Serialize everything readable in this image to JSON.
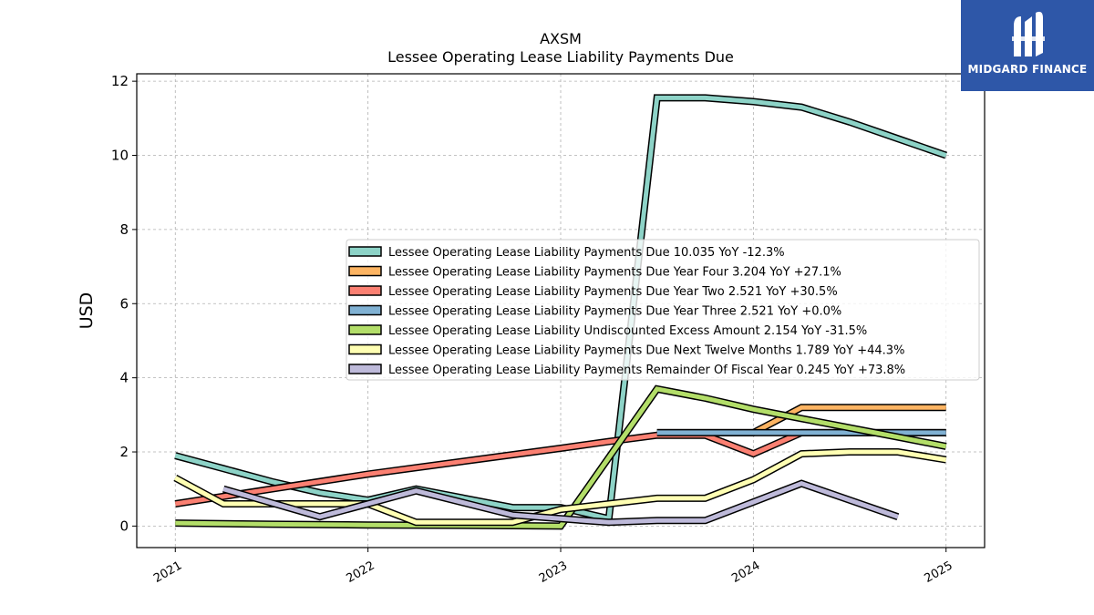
{
  "brand": {
    "name": "MIDGARD FINANCE",
    "color": "#2e57a8"
  },
  "chart_data": {
    "type": "line",
    "title": "AXSM",
    "subtitle": "Lessee Operating Lease Liability Payments Due",
    "xlabel": "",
    "ylabel": "USD",
    "xlim": [
      2020.8,
      2025.2
    ],
    "ylim": [
      -0.58,
      12.2
    ],
    "x_ticks": [
      2021,
      2022,
      2023,
      2024,
      2025
    ],
    "y_ticks": [
      0,
      2,
      4,
      6,
      8,
      10,
      12
    ],
    "grid": true,
    "legend_position": "center-right",
    "series": [
      {
        "name": "Lessee Operating Lease Liability Payments Due",
        "legend_label": "Lessee Operating Lease Liability Payments Due  10.035 YoY -12.3%",
        "color": "#8dd3c7",
        "points": [
          [
            2021.0,
            1.9
          ],
          [
            2021.25,
            1.55
          ],
          [
            2021.5,
            1.2
          ],
          [
            2021.75,
            0.9
          ],
          [
            2022.0,
            0.7
          ],
          [
            2022.25,
            1.0
          ],
          [
            2022.5,
            0.75
          ],
          [
            2022.75,
            0.5
          ],
          [
            2023.0,
            0.5
          ],
          [
            2023.25,
            0.2
          ],
          [
            2023.5,
            11.55
          ],
          [
            2023.75,
            11.55
          ],
          [
            2024.0,
            11.45
          ],
          [
            2024.25,
            11.3
          ],
          [
            2024.5,
            10.9
          ],
          [
            2024.75,
            10.45
          ],
          [
            2025.0,
            10.0
          ]
        ]
      },
      {
        "name": "Lessee Operating Lease Liability Payments Due Year Four",
        "legend_label": "Lessee Operating Lease Liability Payments Due Year Four  3.204 YoY +27.1%",
        "color": "#fdb462",
        "points": [
          [
            2023.5,
            2.52
          ],
          [
            2023.75,
            2.52
          ],
          [
            2024.0,
            2.52
          ],
          [
            2024.25,
            3.2
          ],
          [
            2024.5,
            3.2
          ],
          [
            2024.75,
            3.2
          ],
          [
            2025.0,
            3.2
          ]
        ]
      },
      {
        "name": "Lessee Operating Lease Liability Payments Due Year Two",
        "legend_label": "Lessee Operating Lease Liability Payments Due Year Two  2.521 YoY +30.5%",
        "color": "#fb8072",
        "points": [
          [
            2021.0,
            0.6
          ],
          [
            2022.0,
            1.4
          ],
          [
            2022.5,
            1.75
          ],
          [
            2023.0,
            2.1
          ],
          [
            2023.25,
            2.28
          ],
          [
            2023.5,
            2.45
          ],
          [
            2023.75,
            2.45
          ],
          [
            2024.0,
            1.95
          ],
          [
            2024.25,
            2.52
          ],
          [
            2024.5,
            2.52
          ],
          [
            2024.75,
            2.52
          ],
          [
            2025.0,
            2.52
          ]
        ]
      },
      {
        "name": "Lessee Operating Lease Liability Payments Due Year Three",
        "legend_label": "Lessee Operating Lease Liability Payments Due Year Three  2.521 YoY +0.0%",
        "color": "#80b1d3",
        "points": [
          [
            2023.5,
            2.52
          ],
          [
            2023.75,
            2.52
          ],
          [
            2024.0,
            2.52
          ],
          [
            2024.25,
            2.52
          ],
          [
            2024.5,
            2.52
          ],
          [
            2024.75,
            2.52
          ],
          [
            2025.0,
            2.52
          ]
        ]
      },
      {
        "name": "Lessee Operating Lease Liability Undiscounted Excess Amount",
        "legend_label": "Lessee Operating Lease Liability Undiscounted Excess Amount  2.154 YoY -31.5%",
        "color": "#b3de69",
        "points": [
          [
            2021.0,
            0.08
          ],
          [
            2021.5,
            0.05
          ],
          [
            2022.0,
            0.03
          ],
          [
            2022.5,
            0.02
          ],
          [
            2023.0,
            0.0
          ],
          [
            2023.5,
            3.7
          ],
          [
            2023.75,
            3.45
          ],
          [
            2024.0,
            3.15
          ],
          [
            2024.25,
            2.9
          ],
          [
            2024.5,
            2.65
          ],
          [
            2024.75,
            2.4
          ],
          [
            2025.0,
            2.15
          ]
        ]
      },
      {
        "name": "Lessee Operating Lease Liability Payments Due Next Twelve Months",
        "legend_label": "Lessee Operating Lease Liability Payments Due Next Twelve Months  1.789 YoY +44.3%",
        "color": "#ffffb3",
        "points": [
          [
            2021.0,
            1.3
          ],
          [
            2021.25,
            0.6
          ],
          [
            2021.5,
            0.6
          ],
          [
            2021.75,
            0.6
          ],
          [
            2022.0,
            0.6
          ],
          [
            2022.25,
            0.1
          ],
          [
            2022.5,
            0.1
          ],
          [
            2022.75,
            0.1
          ],
          [
            2023.0,
            0.45
          ],
          [
            2023.25,
            0.6
          ],
          [
            2023.5,
            0.75
          ],
          [
            2023.75,
            0.75
          ],
          [
            2024.0,
            1.25
          ],
          [
            2024.25,
            1.95
          ],
          [
            2024.5,
            2.0
          ],
          [
            2024.75,
            2.0
          ],
          [
            2025.0,
            1.79
          ]
        ]
      },
      {
        "name": "Lessee Operating Lease Liability Payments Remainder Of Fiscal Year",
        "legend_label": "Lessee Operating Lease Liability Payments Remainder Of Fiscal Year  0.245 YoY +73.8%",
        "color": "#bebada",
        "points": [
          [
            2021.25,
            1.0
          ],
          [
            2021.75,
            0.25
          ],
          [
            2022.25,
            0.95
          ],
          [
            2022.75,
            0.3
          ],
          [
            2023.0,
            0.2
          ],
          [
            2023.25,
            0.1
          ],
          [
            2023.5,
            0.15
          ],
          [
            2023.75,
            0.15
          ],
          [
            2024.0,
            0.65
          ],
          [
            2024.25,
            1.15
          ],
          [
            2024.5,
            0.7
          ],
          [
            2024.75,
            0.25
          ]
        ]
      }
    ]
  }
}
